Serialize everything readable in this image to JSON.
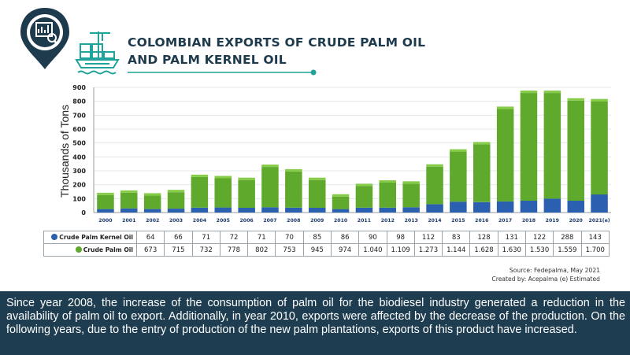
{
  "title_line1": "COLOMBIAN EXPORTS OF CRUDE PALM OIL",
  "title_line2": "AND PALM KERNEL OIL",
  "icons": [
    "stats-location-pin-icon",
    "cargo-ship-icon"
  ],
  "colors": {
    "kernel": "#2b5fb0",
    "crude": "#5faa2c",
    "dark_navy": "#1e3b4d",
    "teal": "#1fa39a"
  },
  "chart_data": {
    "type": "bar",
    "stacked": true,
    "ylabel": "Thousands of Tons",
    "ylim": [
      0,
      900
    ],
    "yticks": [
      "0",
      "100",
      "200",
      "300",
      "400",
      "500",
      "600",
      "700",
      "800",
      "900"
    ],
    "categories": [
      "2000",
      "2001",
      "2002",
      "2003",
      "2004",
      "2005",
      "2006",
      "2007",
      "2008",
      "2009",
      "2010",
      "2011",
      "2012",
      "2013",
      "2014",
      "2015",
      "2016",
      "2017",
      "2018",
      "2019",
      "2020",
      "2021(e)"
    ],
    "series": [
      {
        "name": "Crude Palm Kernel Oil",
        "values": [
          25,
          30,
          25,
          28,
          35,
          36,
          34,
          38,
          35,
          34,
          25,
          35,
          35,
          38,
          60,
          78,
          75,
          80,
          85,
          100,
          85,
          130
        ]
      },
      {
        "name": "Crude Palm Oil",
        "values": [
          100,
          112,
          97,
          118,
          220,
          210,
          200,
          290,
          260,
          200,
          90,
          155,
          180,
          170,
          270,
          360,
          415,
          665,
          775,
          760,
          720,
          670
        ]
      }
    ],
    "table_rows": [
      {
        "label": "Crude Palm Kernel Oil",
        "values": [
          "64",
          "66",
          "71",
          "72",
          "71",
          "70",
          "85",
          "86",
          "90",
          "98",
          "112",
          "83",
          "128",
          "131",
          "122",
          "288",
          "143"
        ]
      },
      {
        "label": "Crude Palm Oil",
        "values": [
          "673",
          "715",
          "732",
          "778",
          "802",
          "753",
          "945",
          "974",
          "1.040",
          "1.109",
          "1.273",
          "1.144",
          "1.628",
          "1.630",
          "1.530",
          "1.559",
          "1.700"
        ]
      }
    ]
  },
  "source": "Source: Fedepalma, May 2021",
  "created": "Created by: Acepalma (e) Estimated",
  "description": "Since year 2008, the increase of the consumption of palm oil for the biodiesel industry generated a reduction in the availability of palm oil to export. Additionally, in year 2010, exports were affected by the decrease of the production. On the following years, due to the entry of production of the new palm plantations, exports of this product have increased."
}
